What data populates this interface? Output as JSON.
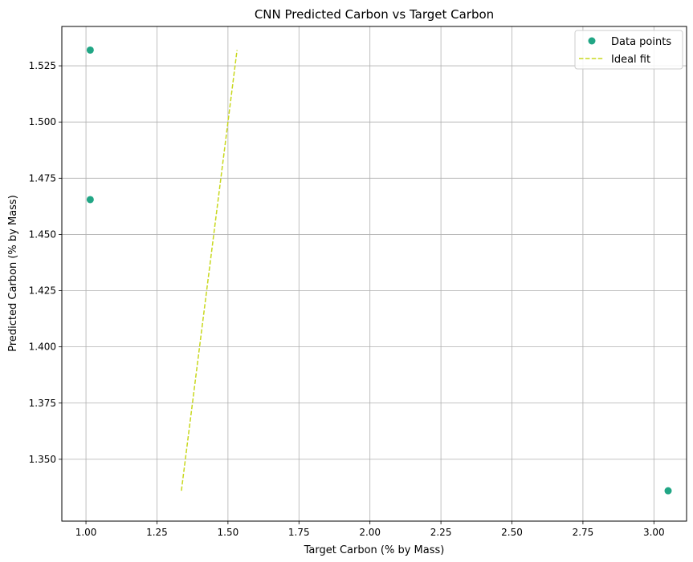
{
  "chart_data": {
    "type": "scatter",
    "title": "CNN Predicted Carbon vs Target Carbon",
    "xlabel": "Target Carbon (% by Mass)",
    "ylabel": "Predicted Carbon (% by Mass)",
    "xlim": [
      0.915,
      3.115
    ],
    "ylim": [
      1.3225,
      1.5425
    ],
    "xticks": [
      "1.00",
      "1.25",
      "1.50",
      "1.75",
      "2.00",
      "2.25",
      "2.50",
      "2.75",
      "3.00"
    ],
    "yticks": [
      "1.350",
      "1.375",
      "1.400",
      "1.425",
      "1.450",
      "1.475",
      "1.500",
      "1.525"
    ],
    "grid": true,
    "legend_position": "top-right",
    "series": [
      {
        "name": "Data points",
        "kind": "scatter",
        "color": "#21a685",
        "points": [
          [
            1.015,
            1.532
          ],
          [
            1.015,
            1.4655
          ],
          [
            3.05,
            1.336
          ]
        ]
      },
      {
        "name": "Ideal fit",
        "kind": "line",
        "style": "dashed",
        "color": "#c8d81e",
        "points": [
          [
            1.336,
            1.336
          ],
          [
            1.532,
            1.532
          ]
        ]
      }
    ]
  }
}
